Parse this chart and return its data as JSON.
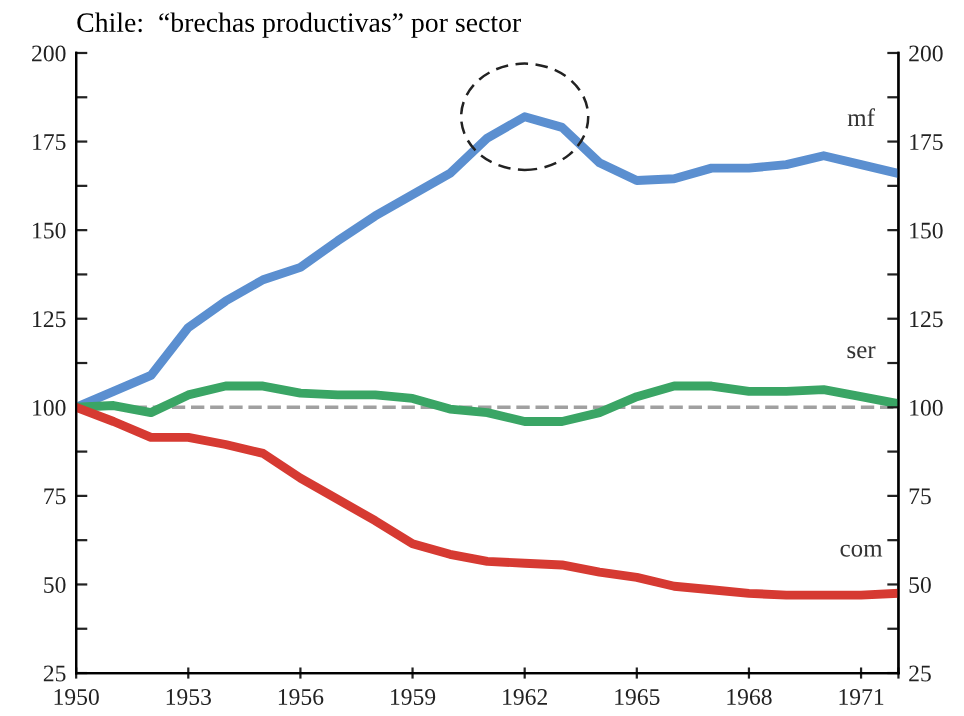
{
  "chart_data": {
    "type": "line",
    "title": "Chile:  “brechas productivas” por sector",
    "x": [
      1950,
      1951,
      1952,
      1953,
      1954,
      1955,
      1956,
      1957,
      1958,
      1959,
      1960,
      1961,
      1962,
      1963,
      1964,
      1965,
      1966,
      1967,
      1968,
      1969,
      1970,
      1971,
      1972
    ],
    "series": [
      {
        "name": "mf",
        "color": "#5b8fd0",
        "values": [
          100,
          104.5,
          109,
          122.5,
          130,
          136,
          139.5,
          147,
          154,
          160,
          166,
          176,
          182,
          179,
          169,
          164,
          164.5,
          167.5,
          167.5,
          168.5,
          171,
          168.5,
          166
        ]
      },
      {
        "name": "ser",
        "color": "#3aa565",
        "values": [
          100,
          100.5,
          98.5,
          103.5,
          106,
          106,
          104,
          103.5,
          103.5,
          102.5,
          99.5,
          98.5,
          96,
          96,
          98.5,
          103,
          106,
          106,
          104.5,
          104.5,
          105,
          103,
          101
        ]
      },
      {
        "name": "com",
        "color": "#d63a32",
        "values": [
          100,
          96,
          91.5,
          91.5,
          89.5,
          87,
          80,
          74,
          68,
          61.5,
          58.5,
          56.5,
          56,
          55.5,
          53.5,
          52,
          49.5,
          48.5,
          47.5,
          47,
          47,
          47,
          47.5
        ]
      }
    ],
    "xlim": [
      1950,
      1972
    ],
    "xticks": [
      1950,
      1953,
      1956,
      1959,
      1962,
      1965,
      1968,
      1971,
      {
        "value": 1972,
        "label": null
      }
    ],
    "ylim": [
      25,
      200
    ],
    "yticks": [
      25,
      {
        "value": 37.5,
        "label": null
      },
      50,
      {
        "value": 62.5,
        "label": null
      },
      75,
      {
        "value": 87.5,
        "label": null
      },
      100,
      {
        "value": 112.5,
        "label": null
      },
      125,
      {
        "value": 137.5,
        "label": null
      },
      150,
      {
        "value": 162.5,
        "label": null
      },
      175,
      {
        "value": 187.5,
        "label": null
      },
      200
    ],
    "y2lim": [
      25,
      200
    ],
    "y2ticks": [
      25,
      {
        "value": 37.5,
        "label": null
      },
      50,
      {
        "value": 62.5,
        "label": null
      },
      75,
      {
        "value": 87.5,
        "label": null
      },
      100,
      {
        "value": 112.5,
        "label": null
      },
      125,
      {
        "value": 137.5,
        "label": null
      },
      150,
      {
        "value": 162.5,
        "label": null
      },
      175,
      {
        "value": 187.5,
        "label": null
      },
      200
    ],
    "ref_lines": [
      {
        "axis": "y",
        "value": 100,
        "color": "#a0a0a0",
        "line_style": "dashed"
      }
    ],
    "grid": false,
    "legend": false,
    "marker": "none",
    "line_style": "solid"
  }
}
